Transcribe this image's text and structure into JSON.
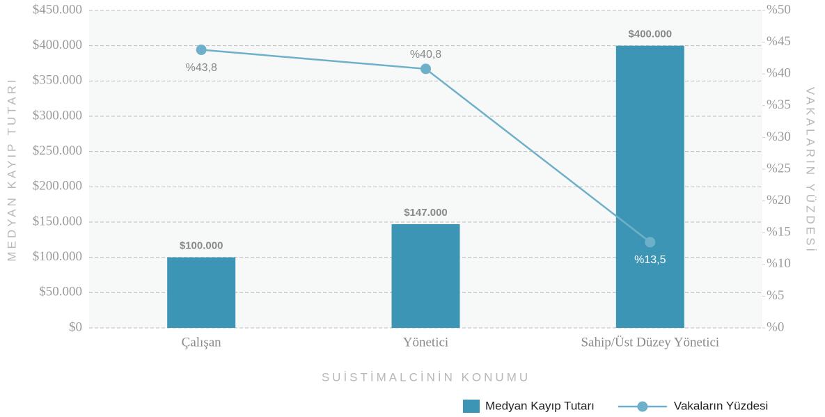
{
  "chart_data": {
    "type": "combo",
    "x_label": "SUİSTİMALCİNİN KONUMU",
    "y_label": "MEDYAN KAYIP TUTARI",
    "y2_label": "VAKALARIN YÜZDESİ",
    "categories": [
      "Çalışan",
      "Yönetici",
      "Sahip/Üst Düzey Yönetici"
    ],
    "series": [
      {
        "name": "Medyan Kayıp Tutarı",
        "type": "bar",
        "color": "#3d95b5",
        "values": [
          100000,
          147000,
          400000
        ],
        "value_labels": [
          "$100.000",
          "$147.000",
          "$400.000"
        ]
      },
      {
        "name": "Vakaların Yüzdesi",
        "type": "line",
        "axis": "y2",
        "color": "#6eb0c9",
        "values": [
          43.8,
          40.8,
          13.5
        ],
        "value_labels": [
          "%43,8",
          "%40,8",
          "%13,5"
        ]
      }
    ],
    "ylim": [
      0,
      450000
    ],
    "yticks": [
      {
        "value": 0,
        "label": "$0"
      },
      {
        "value": 50000,
        "label": "$50.000"
      },
      {
        "value": 100000,
        "label": "$100.000"
      },
      {
        "value": 150000,
        "label": "$150.000"
      },
      {
        "value": 200000,
        "label": "$200.000"
      },
      {
        "value": 250000,
        "label": "$250.000"
      },
      {
        "value": 300000,
        "label": "$300.000"
      },
      {
        "value": 350000,
        "label": "$350.000"
      },
      {
        "value": 400000,
        "label": "$400.000"
      },
      {
        "value": 450000,
        "label": "$450.000"
      }
    ],
    "y2lim": [
      0,
      50
    ],
    "y2ticks": [
      {
        "value": 0,
        "label": "%0"
      },
      {
        "value": 5,
        "label": "%5"
      },
      {
        "value": 10,
        "label": "%10"
      },
      {
        "value": 15,
        "label": "%15"
      },
      {
        "value": 20,
        "label": "%20"
      },
      {
        "value": 25,
        "label": "%25"
      },
      {
        "value": 30,
        "label": "%30"
      },
      {
        "value": 35,
        "label": "%35"
      },
      {
        "value": 40,
        "label": "%40"
      },
      {
        "value": 45,
        "label": "%45"
      },
      {
        "value": 50,
        "label": "%50"
      }
    ],
    "grid": true
  }
}
